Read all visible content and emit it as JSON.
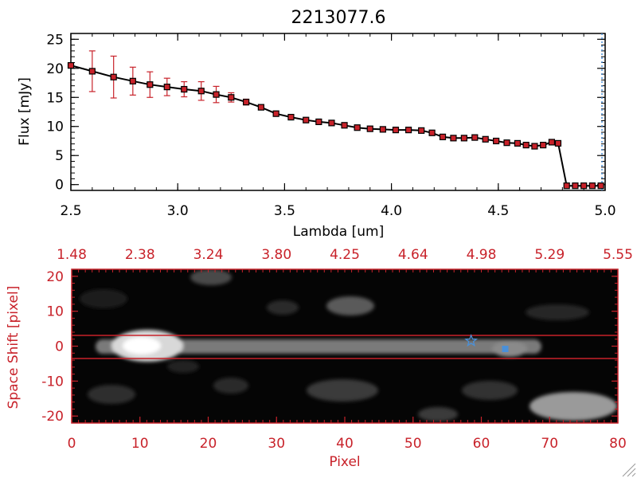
{
  "figure": {
    "title": "2213077.6"
  },
  "chart_data": [
    {
      "type": "line",
      "title": "2213077.6",
      "xlabel": "Lambda [um]",
      "ylabel": "Flux [mJy]",
      "xlim": [
        2.5,
        5.0
      ],
      "ylim": [
        -1,
        26
      ],
      "xticks": [
        "2.5",
        "3.0",
        "3.5",
        "4.0",
        "4.5",
        "5.0"
      ],
      "yticks": [
        "0",
        "5",
        "10",
        "15",
        "20",
        "25"
      ],
      "colors": {
        "line": "#000000",
        "marker": "#c8222a",
        "errorbar": "#c8222a",
        "dashed": "#4a90d9"
      },
      "series": [
        {
          "x": [
            2.5,
            2.6,
            2.7,
            2.79,
            2.87,
            2.95,
            3.03,
            3.11,
            3.18,
            3.25,
            3.32,
            3.39,
            3.46,
            3.53,
            3.6,
            3.66,
            3.72,
            3.78,
            3.84,
            3.9,
            3.96,
            4.02,
            4.08,
            4.14,
            4.19,
            4.24,
            4.29,
            4.34,
            4.39,
            4.44,
            4.49,
            4.54,
            4.59,
            4.63,
            4.67,
            4.71,
            4.75,
            4.78,
            4.82,
            4.86,
            4.9,
            4.94,
            4.98
          ],
          "y": [
            20.5,
            19.5,
            18.5,
            17.8,
            17.2,
            16.8,
            16.4,
            16.1,
            15.5,
            15.0,
            14.2,
            13.3,
            12.2,
            11.6,
            11.1,
            10.8,
            10.6,
            10.2,
            9.8,
            9.6,
            9.5,
            9.4,
            9.4,
            9.3,
            8.9,
            8.2,
            8.0,
            8.0,
            8.1,
            7.8,
            7.5,
            7.2,
            7.1,
            6.8,
            6.6,
            6.8,
            7.3,
            7.1,
            -0.2,
            -0.2,
            -0.2,
            -0.2,
            -0.2
          ],
          "yerr": [
            0,
            3.5,
            3.6,
            2.4,
            2.2,
            1.5,
            1.3,
            1.6,
            1.4,
            0.8,
            0.5,
            0,
            0,
            0,
            0,
            0,
            0,
            0,
            0,
            0,
            0,
            0,
            0,
            0,
            0,
            0,
            0,
            0,
            0,
            0,
            0,
            0,
            0,
            0,
            0,
            0,
            0,
            0,
            0,
            0,
            0,
            0,
            0
          ]
        }
      ]
    },
    {
      "type": "heatmap",
      "xlabel": "Pixel",
      "ylabel": "Space Shift [pixel]",
      "xlim": [
        0,
        80
      ],
      "ylim": [
        -22,
        22
      ],
      "xticks": [
        "0",
        "10",
        "20",
        "30",
        "40",
        "50",
        "60",
        "70",
        "80"
      ],
      "yticks": [
        "-20",
        "-10",
        "0",
        "10",
        "20"
      ],
      "top_axis_ticks": [
        "1.48",
        "2.38",
        "3.24",
        "3.80",
        "4.25",
        "4.64",
        "4.98",
        "5.29",
        "5.55"
      ],
      "extraction_band": [
        -3,
        3
      ],
      "markers": [
        {
          "shape": "star",
          "x": 58.5,
          "y": 1.5,
          "color": "#4a90d9"
        },
        {
          "shape": "square",
          "x": 63.5,
          "y": -0.8,
          "color": "#4a90d9"
        }
      ],
      "colors": {
        "axis": "#c8222a",
        "map": "grayscale",
        "band": "#c8222a"
      }
    }
  ]
}
